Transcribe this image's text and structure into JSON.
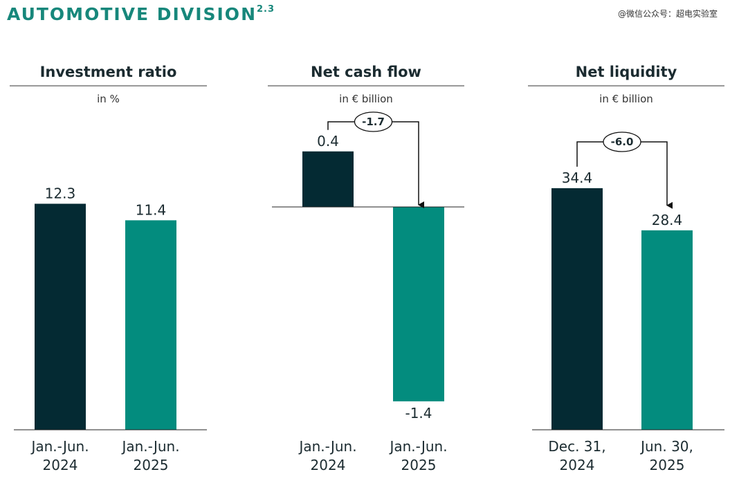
{
  "header": {
    "title": "AUTOMOTIVE DIVISION",
    "superscript": "2.3",
    "watermark": "@微信公众号：超电实验室"
  },
  "colors": {
    "accent": "#17877b",
    "dark_bar": "#042a33",
    "teal_bar": "#038c7e"
  },
  "chart_data": [
    {
      "type": "bar",
      "title": "Investment ratio",
      "subtitle": "in %",
      "categories": [
        [
          "Jan.-Jun.",
          "2024"
        ],
        [
          "Jan.-Jun.",
          "2025"
        ]
      ],
      "values": [
        12.3,
        11.4
      ],
      "value_labels": [
        "12.3",
        "11.4"
      ],
      "colors": [
        "#042a33",
        "#038c7e"
      ],
      "ylim": [
        0,
        14.5
      ]
    },
    {
      "type": "bar",
      "title": "Net cash flow",
      "subtitle": "in € billion",
      "categories": [
        [
          "Jan.-Jun.",
          "2024"
        ],
        [
          "Jan.-Jun.",
          "2025"
        ]
      ],
      "values": [
        0.4,
        -1.4
      ],
      "value_labels": [
        "0.4",
        "-1.4"
      ],
      "colors": [
        "#042a33",
        "#038c7e"
      ],
      "change": "-1.7",
      "ylim": [
        -1.6,
        0.7
      ]
    },
    {
      "type": "bar",
      "title": "Net liquidity",
      "subtitle": "in € billion",
      "categories": [
        [
          "Dec. 31,",
          "2024"
        ],
        [
          "Jun. 30,",
          "2025"
        ]
      ],
      "values": [
        34.4,
        28.4
      ],
      "value_labels": [
        "34.4",
        "28.4"
      ],
      "colors": [
        "#042a33",
        "#038c7e"
      ],
      "change": "-6.0",
      "ylim": [
        0,
        40.5
      ]
    }
  ]
}
